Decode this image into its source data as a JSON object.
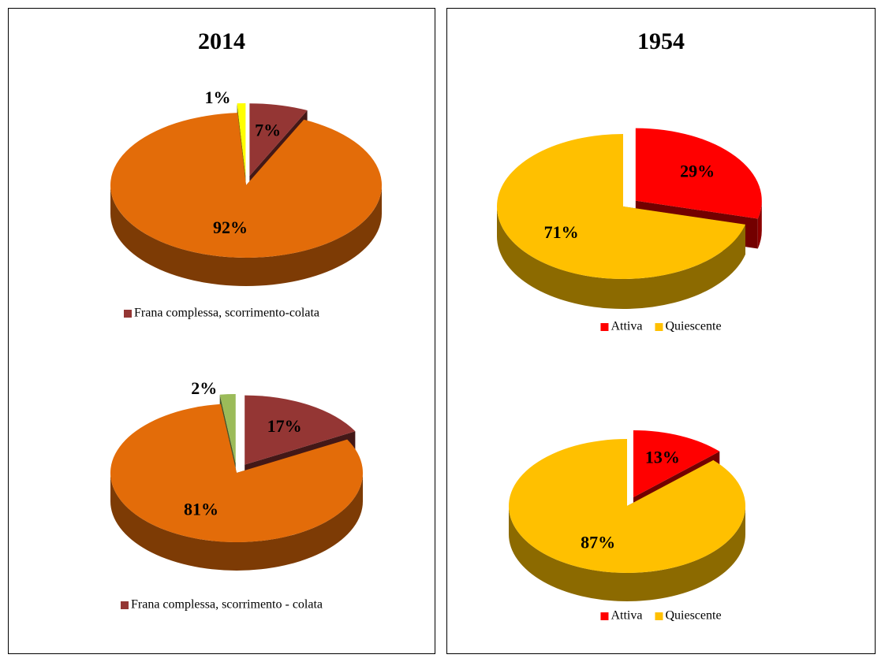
{
  "chart_data": [
    {
      "type": "pie",
      "title": "2014",
      "categories": [
        "Frana complessa, scorrimento-colata",
        null,
        null
      ],
      "values": [
        7,
        92,
        1
      ],
      "value_labels": [
        "7%",
        "92%",
        "1%"
      ],
      "colors": [
        "#943634",
        "#e36c09",
        "#ffff00"
      ]
    },
    {
      "type": "pie",
      "categories": [
        "Frana complessa, scorrimento - colata",
        null,
        null
      ],
      "values": [
        17,
        81,
        2
      ],
      "value_labels": [
        "17%",
        "81%",
        "2%"
      ],
      "colors": [
        "#943634",
        "#e36c09",
        "#9bbb59"
      ]
    },
    {
      "type": "pie",
      "title": "1954",
      "categories": [
        "Attiva",
        "Quiescente"
      ],
      "values": [
        29,
        71
      ],
      "value_labels": [
        "29%",
        "71%"
      ],
      "colors": [
        "#ff0000",
        "#ffc000"
      ]
    },
    {
      "type": "pie",
      "categories": [
        "Attiva",
        "Quiescente"
      ],
      "values": [
        13,
        87
      ],
      "value_labels": [
        "13%",
        "87%"
      ],
      "colors": [
        "#ff0000",
        "#ffc000"
      ]
    }
  ]
}
